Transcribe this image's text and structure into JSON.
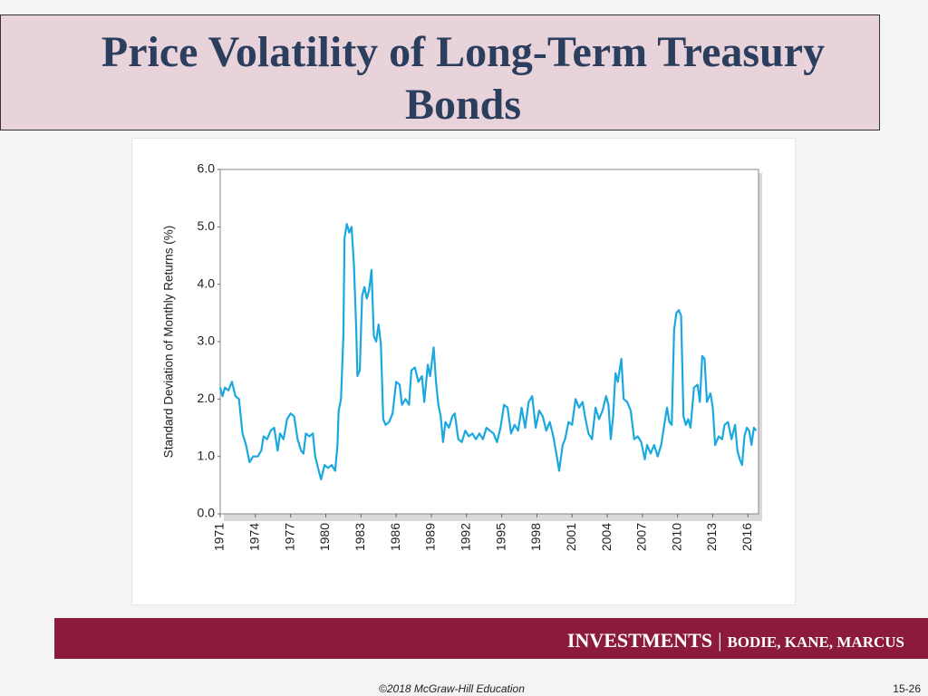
{
  "slide": {
    "title": "Price Volatility of Long-Term Treasury Bonds",
    "book": "INVESTMENTS",
    "separator": "|",
    "authors": "BODIE, KANE, MARCUS",
    "copyright": "©2018 McGraw-Hill Education",
    "page_number": "15-26"
  },
  "chart_data": {
    "type": "line",
    "ylabel": "Standard Deviation of Monthly Returns (%)",
    "x": [
      1971.0,
      1971.2,
      1971.4,
      1971.7,
      1972.0,
      1972.3,
      1972.6,
      1972.9,
      1973.2,
      1973.5,
      1973.8,
      1974.2,
      1974.5,
      1974.7,
      1975.0,
      1975.3,
      1975.6,
      1975.9,
      1976.1,
      1976.4,
      1976.7,
      1977.0,
      1977.3,
      1977.6,
      1977.9,
      1978.1,
      1978.3,
      1978.6,
      1978.9,
      1979.1,
      1979.4,
      1979.6,
      1979.9,
      1980.2,
      1980.5,
      1980.8,
      1981.0,
      1981.1,
      1981.3,
      1981.5,
      1981.6,
      1981.8,
      1982.0,
      1982.2,
      1982.4,
      1982.6,
      1982.7,
      1982.9,
      1983.1,
      1983.3,
      1983.5,
      1983.7,
      1983.9,
      1984.1,
      1984.3,
      1984.5,
      1984.7,
      1984.9,
      1985.1,
      1985.4,
      1985.7,
      1986.0,
      1986.3,
      1986.5,
      1986.8,
      1987.1,
      1987.3,
      1987.6,
      1987.9,
      1988.2,
      1988.4,
      1988.7,
      1988.9,
      1989.2,
      1989.4,
      1989.6,
      1989.8,
      1990.0,
      1990.2,
      1990.5,
      1990.8,
      1991.0,
      1991.3,
      1991.6,
      1991.9,
      1992.2,
      1992.5,
      1992.8,
      1993.1,
      1993.4,
      1993.7,
      1994.0,
      1994.3,
      1994.6,
      1994.9,
      1995.2,
      1995.5,
      1995.8,
      1996.1,
      1996.4,
      1996.7,
      1997.0,
      1997.3,
      1997.6,
      1997.9,
      1998.2,
      1998.5,
      1998.8,
      1999.1,
      1999.4,
      1999.7,
      1999.9,
      2000.2,
      2000.4,
      2000.7,
      2001.0,
      2001.3,
      2001.6,
      2001.9,
      2002.1,
      2002.4,
      2002.7,
      2003.0,
      2003.3,
      2003.6,
      2003.9,
      2004.1,
      2004.3,
      2004.5,
      2004.7,
      2004.9,
      2005.2,
      2005.4,
      2005.7,
      2006.0,
      2006.3,
      2006.6,
      2006.9,
      2007.2,
      2007.4,
      2007.7,
      2008.0,
      2008.3,
      2008.6,
      2008.9,
      2009.1,
      2009.3,
      2009.5,
      2009.7,
      2009.9,
      2010.1,
      2010.3,
      2010.5,
      2010.7,
      2010.9,
      2011.1,
      2011.4,
      2011.7,
      2011.9,
      2012.1,
      2012.3,
      2012.5,
      2012.8,
      2013.0,
      2013.2,
      2013.5,
      2013.8,
      2014.0,
      2014.3,
      2014.6,
      2014.9,
      2015.1,
      2015.3,
      2015.5,
      2015.7,
      2015.9,
      2016.1,
      2016.3,
      2016.5,
      2016.7
    ],
    "series": [
      {
        "color": "#1ba8df",
        "values": [
          2.2,
          2.05,
          2.2,
          2.15,
          2.3,
          2.05,
          2.0,
          1.4,
          1.2,
          0.9,
          1.0,
          1.0,
          1.1,
          1.35,
          1.3,
          1.45,
          1.5,
          1.1,
          1.4,
          1.3,
          1.65,
          1.75,
          1.7,
          1.3,
          1.1,
          1.05,
          1.4,
          1.35,
          1.4,
          1.0,
          0.75,
          0.6,
          0.85,
          0.8,
          0.85,
          0.75,
          1.2,
          1.8,
          2.0,
          3.1,
          4.8,
          5.05,
          4.9,
          5.0,
          4.35,
          3.2,
          2.4,
          2.5,
          3.8,
          3.95,
          3.75,
          3.9,
          4.25,
          3.1,
          3.0,
          3.3,
          2.95,
          1.65,
          1.55,
          1.6,
          1.75,
          2.3,
          2.25,
          1.9,
          2.0,
          1.9,
          2.5,
          2.55,
          2.3,
          2.4,
          1.95,
          2.6,
          2.4,
          2.9,
          2.3,
          1.9,
          1.7,
          1.25,
          1.6,
          1.5,
          1.7,
          1.75,
          1.3,
          1.25,
          1.45,
          1.35,
          1.4,
          1.3,
          1.4,
          1.3,
          1.5,
          1.45,
          1.4,
          1.25,
          1.5,
          1.9,
          1.85,
          1.4,
          1.55,
          1.45,
          1.85,
          1.5,
          1.95,
          2.05,
          1.5,
          1.8,
          1.7,
          1.45,
          1.6,
          1.35,
          1.0,
          0.75,
          1.2,
          1.3,
          1.6,
          1.55,
          2.0,
          1.85,
          1.95,
          1.7,
          1.4,
          1.3,
          1.85,
          1.65,
          1.8,
          2.05,
          1.9,
          1.3,
          1.7,
          2.45,
          2.3,
          2.7,
          2.0,
          1.95,
          1.8,
          1.3,
          1.35,
          1.25,
          0.95,
          1.2,
          1.05,
          1.2,
          1.0,
          1.2,
          1.6,
          1.85,
          1.6,
          1.55,
          3.2,
          3.5,
          3.55,
          3.45,
          1.7,
          1.55,
          1.65,
          1.5,
          2.2,
          2.25,
          1.95,
          2.75,
          2.7,
          1.95,
          2.1,
          1.85,
          1.2,
          1.35,
          1.3,
          1.55,
          1.6,
          1.3,
          1.55,
          1.1,
          0.95,
          0.85,
          1.35,
          1.5,
          1.45,
          1.2,
          1.5,
          1.45
        ]
      }
    ],
    "xlim": [
      1971,
      2016.9
    ],
    "xticks": [
      1971,
      1974,
      1977,
      1980,
      1983,
      1986,
      1989,
      1992,
      1995,
      1998,
      2001,
      2004,
      2007,
      2010,
      2013,
      2016
    ],
    "ylim": [
      0,
      6
    ],
    "yticks": [
      {
        "value": 0,
        "label": "0.0"
      },
      {
        "value": 1,
        "label": "1.0"
      },
      {
        "value": 2,
        "label": "2.0"
      },
      {
        "value": 3,
        "label": "3.0"
      },
      {
        "value": 4,
        "label": "4.0"
      },
      {
        "value": 5,
        "label": "5.0"
      },
      {
        "value": 6,
        "label": "6.0"
      }
    ],
    "grid": false
  }
}
